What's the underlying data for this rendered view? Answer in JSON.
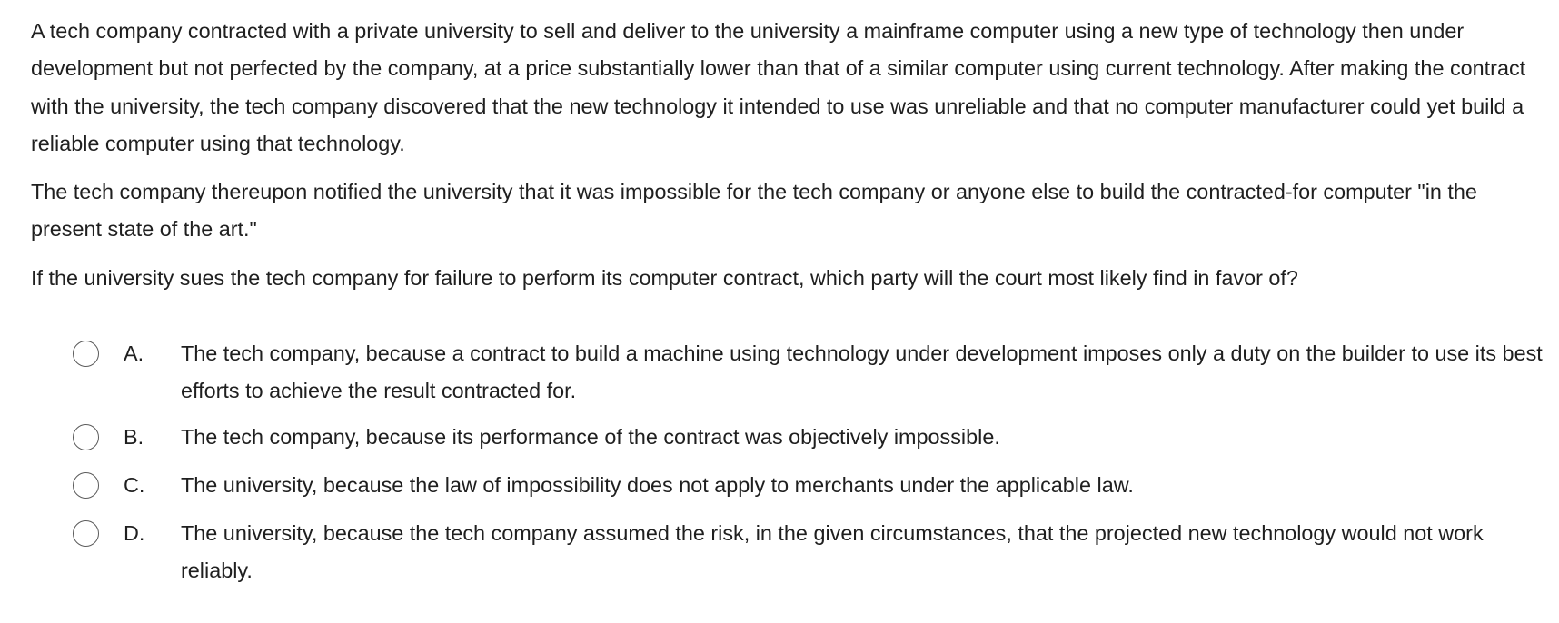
{
  "question": {
    "paragraphs": [
      "A tech company contracted with a private university to sell and deliver to the university a mainframe computer using a new type of technology then under development but not perfected by the company, at a price substantially lower than that of a similar computer using current technology.  After making the contract with the university, the tech company discovered that the new technology it intended to use was unreliable and that no computer manufacturer could yet build a reliable computer using that technology.",
      "The tech company thereupon notified the university that it was impossible for the tech company or anyone else to build the contracted-for computer \"in the present state of the art.\"",
      "If the university sues the tech company for failure to perform its computer contract, which party will the court most likely find in favor of?"
    ]
  },
  "options": [
    {
      "letter": "A.",
      "text": "The tech company, because a contract to build a machine using technology under development imposes only a duty on the builder to use its best efforts to achieve the result contracted for."
    },
    {
      "letter": "B.",
      "text": "The tech company, because its performance of the contract was objectively impossible."
    },
    {
      "letter": "C.",
      "text": "The university, because the law of impossibility does not apply to merchants under the applicable law."
    },
    {
      "letter": "D.",
      "text": "The university, because the tech company assumed the risk, in the given circumstances, that the projected new technology would not work reliably."
    }
  ]
}
